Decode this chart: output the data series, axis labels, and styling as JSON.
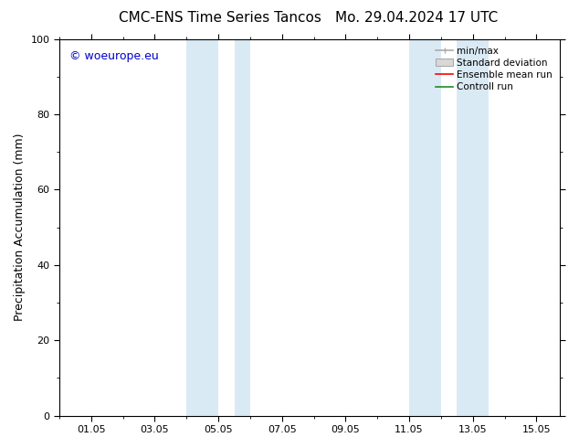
{
  "title_left": "CMC-ENS Time Series Tancos",
  "title_right": "Mo. 29.04.2024 17 UTC",
  "ylabel": "Precipitation Accumulation (mm)",
  "ylim": [
    0,
    100
  ],
  "background_color": "#ffffff",
  "plot_bg_color": "#ffffff",
  "watermark_text": "© woeurope.eu",
  "watermark_color": "#0000cc",
  "xtick_labels": [
    "01.05",
    "03.05",
    "05.05",
    "07.05",
    "09.05",
    "11.05",
    "13.05",
    "15.05"
  ],
  "xtick_positions_day": [
    1,
    3,
    5,
    7,
    9,
    11,
    13,
    15
  ],
  "xlim": [
    0.0,
    15.75
  ],
  "shaded_bands": [
    {
      "x_start_day": 4.0,
      "x_end_day": 5.0
    },
    {
      "x_start_day": 5.5,
      "x_end_day": 6.0
    },
    {
      "x_start_day": 11.0,
      "x_end_day": 12.0
    },
    {
      "x_start_day": 12.5,
      "x_end_day": 13.5
    }
  ],
  "shade_color": "#daeaf5",
  "legend_labels": [
    "min/max",
    "Standard deviation",
    "Ensemble mean run",
    "Controll run"
  ],
  "legend_line_colors": [
    "#aaaaaa",
    "#cccccc",
    "#ff0000",
    "#228B22"
  ],
  "title_fontsize": 11,
  "tick_fontsize": 8,
  "label_fontsize": 9,
  "legend_fontsize": 7.5
}
